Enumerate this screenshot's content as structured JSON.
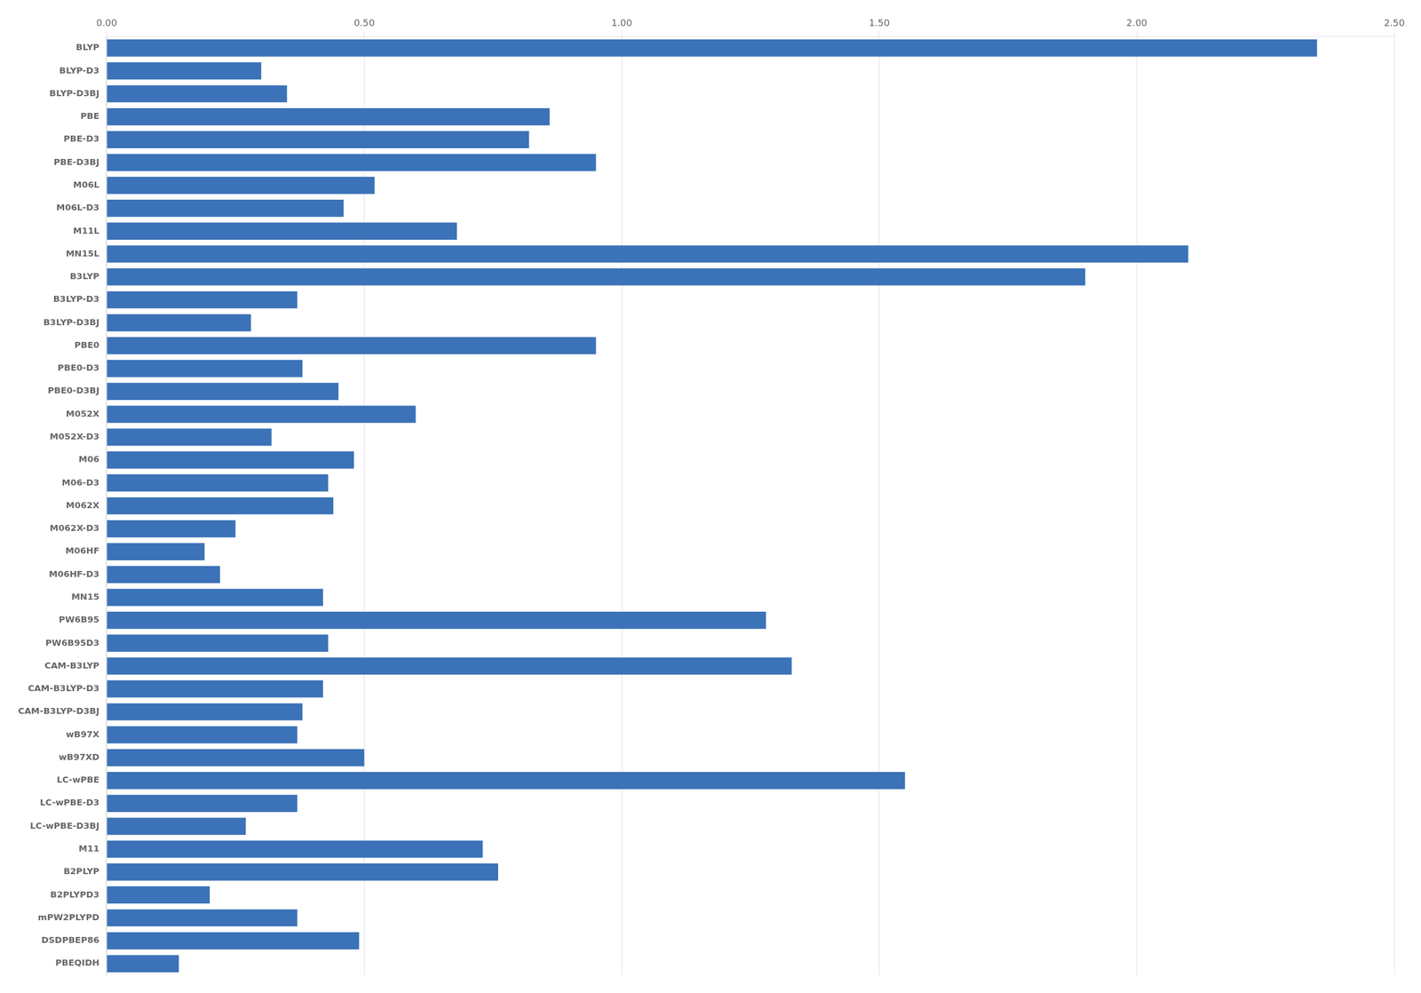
{
  "chart_data": {
    "type": "bar",
    "orientation": "horizontal",
    "categories": [
      "BLYP",
      "BLYP-D3",
      "BLYP-D3BJ",
      "PBE",
      "PBE-D3",
      "PBE-D3BJ",
      "M06L",
      "M06L-D3",
      "M11L",
      "MN15L",
      "B3LYP",
      "B3LYP-D3",
      "B3LYP-D3BJ",
      "PBE0",
      "PBE0-D3",
      "PBE0-D3BJ",
      "M052X",
      "M052X-D3",
      "M06",
      "M06-D3",
      "M062X",
      "M062X-D3",
      "M06HF",
      "M06HF-D3",
      "MN15",
      "PW6B95",
      "PW6B95D3",
      "CAM-B3LYP",
      "CAM-B3LYP-D3",
      "CAM-B3LYP-D3BJ",
      "wB97X",
      "wB97XD",
      "LC-wPBE",
      "LC-wPBE-D3",
      "LC-wPBE-D3BJ",
      "M11",
      "B2PLYP",
      "B2PLYPD3",
      "mPW2PLYPD",
      "DSDPBEP86",
      "PBEQIDH"
    ],
    "values": [
      2.35,
      0.3,
      0.35,
      0.86,
      0.82,
      0.95,
      0.52,
      0.46,
      0.68,
      2.1,
      1.9,
      0.37,
      0.28,
      0.95,
      0.38,
      0.45,
      0.6,
      0.32,
      0.48,
      0.43,
      0.44,
      0.25,
      0.19,
      0.22,
      0.42,
      1.28,
      0.43,
      1.33,
      0.42,
      0.38,
      0.37,
      0.5,
      1.55,
      0.37,
      0.27,
      0.73,
      0.76,
      0.2,
      0.37,
      0.49,
      0.14
    ],
    "color": "#3B72B8",
    "xlim": [
      0,
      2.5
    ],
    "xticks": [
      {
        "value": 0.0,
        "label": "0.00"
      },
      {
        "value": 0.5,
        "label": "0.50"
      },
      {
        "value": 1.0,
        "label": "1.00"
      },
      {
        "value": 1.5,
        "label": "1.50"
      },
      {
        "value": 2.0,
        "label": "2.00"
      },
      {
        "value": 2.5,
        "label": "2.50"
      }
    ],
    "grid": true
  }
}
